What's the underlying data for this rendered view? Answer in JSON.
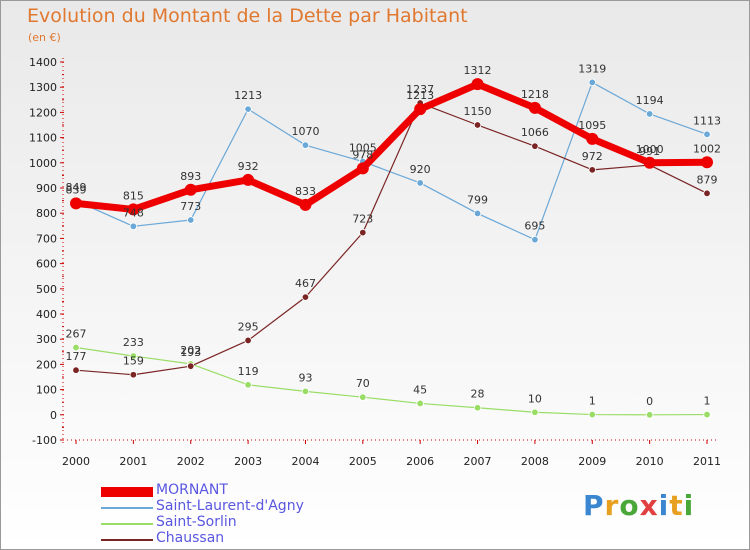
{
  "chart_data": {
    "type": "line",
    "title": "Evolution du Montant de la Dette par Habitant",
    "ylabel": "(en €)",
    "xlabel": "",
    "x": [
      "2000",
      "2001",
      "2002",
      "2003",
      "2004",
      "2005",
      "2006",
      "2007",
      "2008",
      "2009",
      "2010",
      "2011"
    ],
    "ylim": [
      -100,
      1400
    ],
    "yticks": [
      -100,
      0,
      100,
      200,
      300,
      400,
      500,
      600,
      700,
      800,
      900,
      1000,
      1100,
      1200,
      1300,
      1400
    ],
    "grid": false,
    "legend_position": "bottom-left",
    "series": [
      {
        "name": "MORNANT",
        "color": "#ee0000",
        "values": [
          839,
          815,
          893,
          932,
          833,
          978,
          1213,
          1312,
          1218,
          1095,
          1000,
          1002
        ],
        "labels": [
          "839",
          "815",
          "893",
          "932",
          "833",
          "978",
          "1213",
          "1312",
          "1218",
          "1095",
          "1000",
          "1002"
        ]
      },
      {
        "name": "Saint-Laurent-d'Agny",
        "color": "#6aa8d8",
        "values": [
          849,
          748,
          773,
          1213,
          1070,
          1005,
          920,
          799,
          695,
          1319,
          1194,
          1113
        ],
        "labels": [
          "849",
          "748",
          "773",
          "1213",
          "1070",
          "1005",
          "920",
          "799",
          "695",
          "1319",
          "1194",
          "1113"
        ]
      },
      {
        "name": "Saint-Sorlin",
        "color": "#99dd66",
        "values": [
          267,
          233,
          202,
          119,
          93,
          70,
          45,
          28,
          10,
          1,
          0,
          1
        ],
        "labels": [
          "267",
          "233",
          "202",
          "119",
          "93",
          "70",
          "45",
          "28",
          "10",
          "1",
          "0",
          "1"
        ]
      },
      {
        "name": "Chaussan",
        "color": "#7a2424",
        "values": [
          177,
          159,
          193,
          295,
          467,
          723,
          1237,
          1150,
          1066,
          972,
          991,
          879
        ],
        "labels": [
          "177",
          "159",
          "193",
          "295",
          "467",
          "723",
          "1237",
          "1150",
          "1066",
          "972",
          "991",
          "879"
        ]
      }
    ]
  },
  "logo": {
    "letters": [
      "P",
      "r",
      "o",
      "x",
      "i",
      "t",
      "i"
    ],
    "colors": [
      "#3a86d0",
      "#e8a020",
      "#4aa838",
      "#e04040",
      "#3a86d0",
      "#e8a020",
      "#4aa838"
    ]
  }
}
